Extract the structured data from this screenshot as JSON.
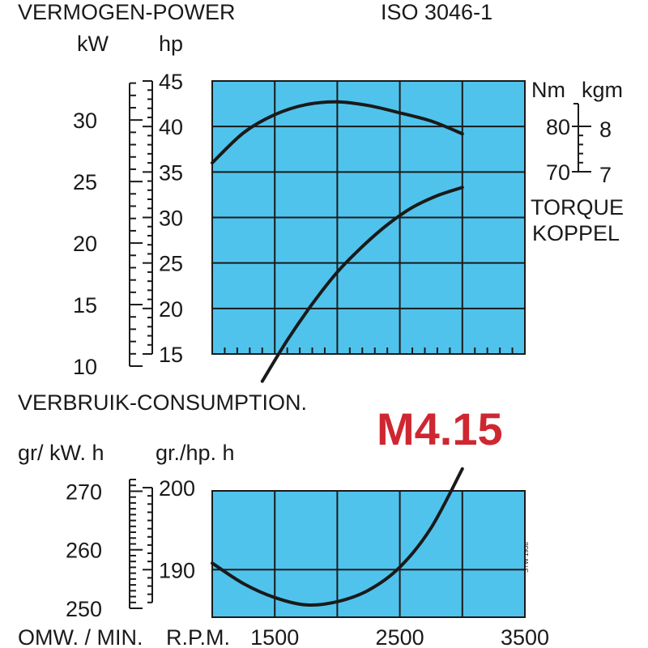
{
  "colors": {
    "plot_bg": "#50c3ec",
    "grid": "#1a1a1a",
    "curve": "#1a1a1a",
    "model": "#cf2731"
  },
  "header": {
    "title": "VERMOGEN-POWER",
    "standard": "ISO 3046-1",
    "unit_kw": "kW",
    "unit_hp": "hp",
    "unit_nm": "Nm",
    "unit_kgm": "kgm",
    "torque_line1": "TORQUE",
    "torque_line2": "KOPPEL"
  },
  "consumption": {
    "title": "VERBRUIK-CONSUMPTION.",
    "unit_kwh": "gr/ kW. h",
    "unit_hph": "gr./hp. h"
  },
  "model": "M4.15",
  "footer": {
    "left": "OMW. / MIN.",
    "rpm": "R.P.M.",
    "side_mark": "STW 1938"
  },
  "chart_data": [
    {
      "type": "line",
      "title": "VERMOGEN-POWER",
      "x_range": [
        1000,
        3500
      ],
      "axes": {
        "kW": {
          "ticks": [
            10,
            15,
            20,
            25,
            30
          ],
          "range": [
            10,
            33.5
          ]
        },
        "hp": {
          "ticks": [
            15,
            20,
            25,
            30,
            35,
            40,
            45
          ],
          "range": [
            15,
            45
          ]
        },
        "torque": {
          "Nm_ticks": [
            70,
            80
          ],
          "kgm_ticks": [
            7,
            8
          ]
        }
      },
      "series": [
        {
          "axis": "hp",
          "x": [
            1000,
            1250,
            1500,
            1750,
            2000,
            2250,
            2500,
            2750,
            3000
          ],
          "y": [
            36,
            39.3,
            41.3,
            42.4,
            42.7,
            42.3,
            41.5,
            40.6,
            39.2
          ]
        },
        {
          "axis": "hp",
          "x": [
            1400,
            1600,
            1800,
            2000,
            2200,
            2400,
            2600,
            2800,
            3000
          ],
          "y": [
            12,
            16.5,
            20.5,
            24,
            26.8,
            29.2,
            31.1,
            32.4,
            33.3
          ]
        }
      ],
      "grid": true
    },
    {
      "type": "line",
      "title": "VERBRUIK-CONSUMPTION.",
      "x_range": [
        1000,
        3500
      ],
      "x_ticks": [
        1500,
        2500,
        3500
      ],
      "axes": {
        "gr/kW.h": {
          "ticks": [
            250,
            260,
            270
          ],
          "range": [
            250,
            272
          ]
        },
        "gr/hp.h": {
          "ticks": [
            190,
            200
          ],
          "range": [
            184.2,
            200.4
          ]
        }
      },
      "series": [
        {
          "axis": "gr/hp.h",
          "x": [
            1000,
            1250,
            1500,
            1750,
            2000,
            2250,
            2500,
            2750,
            3000
          ],
          "y": [
            190.8,
            188.3,
            186.6,
            185.7,
            186.1,
            187.5,
            190.3,
            195.1,
            202.3
          ]
        }
      ],
      "grid": true
    }
  ]
}
